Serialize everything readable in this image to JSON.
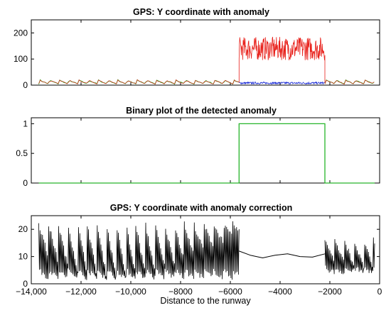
{
  "colors": {
    "background": "#ffffff",
    "axes": "#000000",
    "red_series": "#e8201a",
    "blue_series": "#1f2fd6",
    "green_series": "#27b52a",
    "black_series": "#000000"
  },
  "chart_data": [
    {
      "type": "line",
      "title": "GPS: Y coordinate with anomaly",
      "xlim": [
        -14000,
        0
      ],
      "ylim": [
        0,
        250
      ],
      "yticks": [
        "0",
        "100",
        "200"
      ],
      "x_tick_labels_shown": false,
      "sawtooth_segments": [
        {
          "x_start": -13700,
          "x_end": -5650,
          "period": 390,
          "low": 5,
          "high": 20
        },
        {
          "x_start": -2200,
          "x_end": -200,
          "period": 390,
          "low": 5,
          "high": 20
        }
      ],
      "anomaly_segment": {
        "x_start": -5650,
        "x_end": -2200,
        "level": 140,
        "spread": 45
      },
      "blue_segment": {
        "x_start": -5650,
        "x_end": -2200,
        "level": 8,
        "spread": 4
      }
    },
    {
      "type": "line",
      "title": "Binary plot of the detected anomaly",
      "xlim": [
        -14000,
        0
      ],
      "ylim": [
        0,
        1.1
      ],
      "yticks": [
        "0",
        "0.5",
        "1"
      ],
      "x_tick_labels_shown": false,
      "x": [
        -13700,
        -5650,
        -5650,
        -2200,
        -2200,
        -200
      ],
      "y": [
        0,
        0,
        1,
        1,
        0,
        0
      ]
    },
    {
      "type": "line",
      "title": "GPS: Y coordinate with anomaly correction",
      "xlim": [
        -14000,
        0
      ],
      "ylim": [
        0,
        25
      ],
      "yticks": [
        "0",
        "10",
        "20"
      ],
      "xticks": [
        "−14,000",
        "−12,000",
        "−10,000",
        "−8000",
        "−6000",
        "−4000",
        "−2000",
        "0"
      ],
      "xlabel": "Distance to the runway",
      "sawtooth_segments": [
        {
          "x_start": -13700,
          "x_end": -5650,
          "period": 390,
          "low": 2,
          "high": 22
        },
        {
          "x_start": -2200,
          "x_end": -200,
          "period": 390,
          "low": 4,
          "high": 16
        }
      ],
      "corrected_segment": {
        "x": [
          -5650,
          -5200,
          -4700,
          -4200,
          -3700,
          -3200,
          -2700,
          -2200
        ],
        "y": [
          12,
          10.5,
          9.5,
          10.5,
          11,
          10,
          9.8,
          11
        ]
      }
    }
  ]
}
